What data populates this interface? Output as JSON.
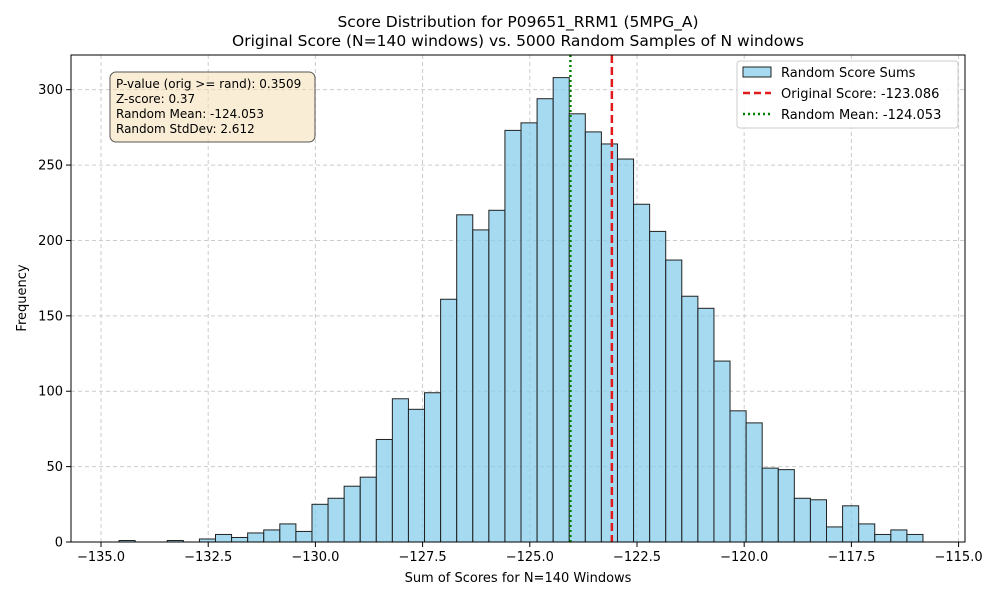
{
  "chart_data": {
    "type": "bar",
    "title": "Score Distribution for P09651_RRM1 (5MPG_A)",
    "subtitle": "Original Score (N=140 windows) vs. 5000 Random Samples of N windows",
    "xlabel": "Sum of Scores for N=140 Windows",
    "ylabel": "Frequency",
    "xlim": [
      -135.7,
      -114.85
    ],
    "ylim": [
      0,
      323
    ],
    "x_ticks": [
      -135.0,
      -132.5,
      -130.0,
      -127.5,
      -125.0,
      -122.5,
      -120.0,
      -117.5,
      -115.0
    ],
    "x_tick_labels": [
      "−135.0",
      "−132.5",
      "−130.0",
      "−127.5",
      "−125.0",
      "−122.5",
      "−120.0",
      "−117.5",
      "−115.0"
    ],
    "y_ticks": [
      0,
      50,
      100,
      150,
      200,
      250,
      300
    ],
    "y_tick_labels": [
      "0",
      "50",
      "100",
      "150",
      "200",
      "250",
      "300"
    ],
    "grid": true,
    "bin_start": -134.58,
    "bin_width": 0.375,
    "values": [
      1,
      0,
      0,
      1,
      0,
      2,
      5,
      3,
      6,
      8,
      12,
      7,
      25,
      29,
      37,
      43,
      68,
      95,
      88,
      99,
      161,
      217,
      207,
      220,
      273,
      278,
      294,
      308,
      284,
      272,
      264,
      254,
      224,
      206,
      187,
      163,
      155,
      120,
      87,
      79,
      49,
      48,
      29,
      28,
      10,
      24,
      12,
      5,
      8,
      5
    ],
    "colors": {
      "bar_fill": "#87ceeb",
      "bar_edge": "#222222",
      "original_line": "#e31a1c",
      "mean_line": "#008000"
    },
    "lines": [
      {
        "name": "original",
        "x": -123.086,
        "style": "dashed"
      },
      {
        "name": "mean",
        "x": -124.053,
        "style": "dotted"
      }
    ],
    "legend": {
      "position": "top-right",
      "entries": [
        "Random Score Sums",
        "Original Score: -123.086",
        "Random Mean: -124.053"
      ]
    },
    "stats_box": {
      "position": "top-left",
      "lines": [
        "P-value (orig >= rand): 0.3509",
        "Z-score: 0.37",
        "Random Mean: -124.053",
        "Random StdDev: 2.612"
      ]
    }
  }
}
